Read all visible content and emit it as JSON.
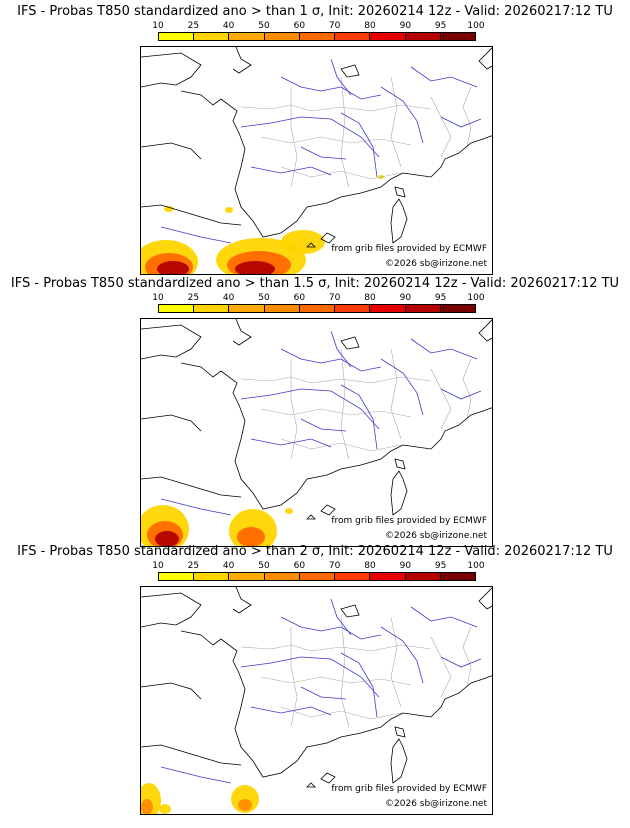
{
  "panels": [
    {
      "title": "IFS - Probas T850  standardized ano > than 1 σ, Init: 20260214 12z - Valid: 20260217:12 TU",
      "threshold": "1 σ"
    },
    {
      "title": "IFS - Probas T850  standardized ano > than 1.5 σ, Init: 20260214 12z - Valid: 20260217:12 TU",
      "threshold": "1.5 σ"
    },
    {
      "title": "IFS - Probas T850  standardized ano > than 2 σ, Init: 20260214 12z - Valid: 20260217:12 TU",
      "threshold": "2 σ"
    }
  ],
  "colorbar": {
    "ticks": [
      "10",
      "25",
      "40",
      "50",
      "60",
      "70",
      "80",
      "90",
      "95",
      "100"
    ],
    "colors": [
      "#ffff00",
      "#ffd500",
      "#ffaa00",
      "#ff8c00",
      "#ff6a00",
      "#ff3c00",
      "#e60000",
      "#b40000",
      "#780000"
    ]
  },
  "credits": {
    "source": "from grib files provided by ECMWF",
    "copyright": "©2026 sb@irizone.net"
  },
  "map_colors": {
    "coast": "#000000",
    "rivers": "#3a3acc",
    "borders": "#a8a8a8"
  }
}
